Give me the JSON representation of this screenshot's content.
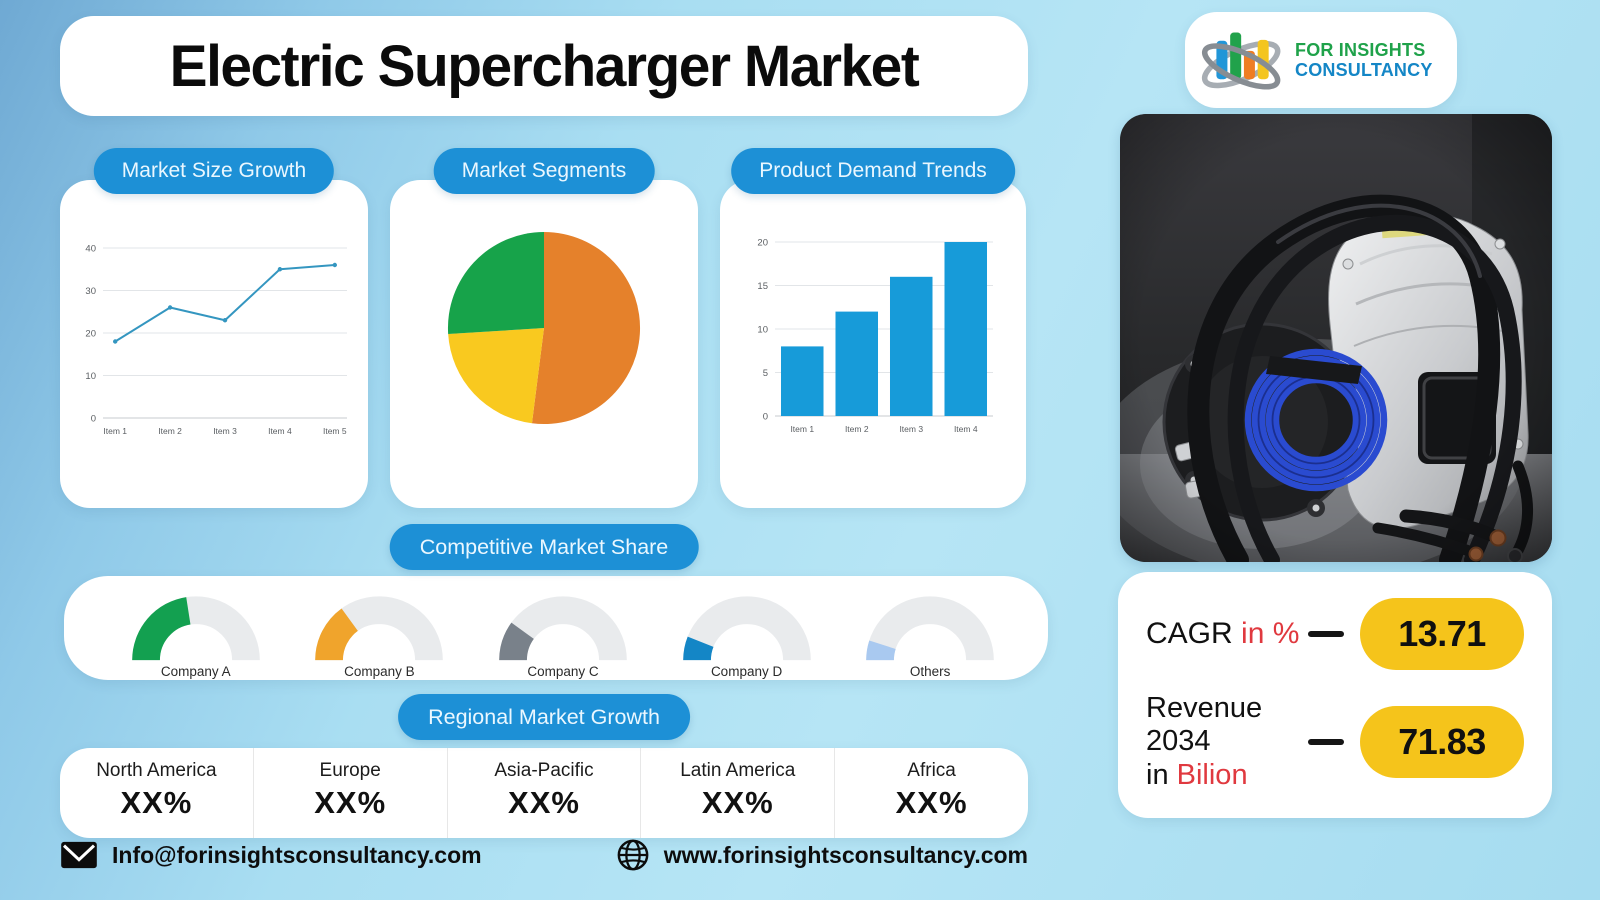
{
  "title": "Electric Supercharger Market",
  "logo": {
    "line1": "FOR INSIGHTS",
    "line2": "CONSULTANCY"
  },
  "section_labels": {
    "market_size": "Market Size Growth",
    "segments": "Market Segments",
    "demand": "Product Demand Trends",
    "competitive": "Competitive Market Share",
    "regional": "Regional Market Growth"
  },
  "chart_data": [
    {
      "id": "market_size_growth",
      "type": "line",
      "title": "Market Size Growth",
      "categories": [
        "Item 1",
        "Item 2",
        "Item 3",
        "Item 4",
        "Item 5"
      ],
      "values": [
        18,
        26,
        23,
        35,
        36
      ],
      "y_ticks": [
        0,
        10,
        20,
        30,
        40
      ],
      "ylim": [
        0,
        40
      ],
      "line_color": "#3496c0",
      "grid": true,
      "legend": "none"
    },
    {
      "id": "market_segments",
      "type": "pie",
      "title": "Market Segments",
      "values": [
        52,
        22,
        26
      ],
      "colors": [
        "#e5812b",
        "#f9c91f",
        "#17a34a"
      ],
      "start": "top",
      "direction": "clockwise",
      "legend": "none"
    },
    {
      "id": "product_demand_trends",
      "type": "bar",
      "title": "Product Demand Trends",
      "categories": [
        "Item 1",
        "Item 2",
        "Item 3",
        "Item 4"
      ],
      "values": [
        8,
        12,
        16,
        20
      ],
      "y_ticks": [
        0,
        5,
        10,
        15,
        20
      ],
      "ylim": [
        0,
        20
      ],
      "bar_color": "#179bd9",
      "grid": true,
      "legend": "none"
    },
    {
      "id": "competitive_market_share",
      "type": "gauge",
      "title": "Competitive Market Share",
      "track_color": "#e9ebed",
      "gauges": [
        {
          "name": "Company A",
          "value": 45,
          "color": "#13a050"
        },
        {
          "name": "Company B",
          "value": 30,
          "color": "#f0a42c"
        },
        {
          "name": "Company C",
          "value": 20,
          "color": "#79818a"
        },
        {
          "name": "Company D",
          "value": 12,
          "color": "#1486c6"
        },
        {
          "name": "Others",
          "value": 10,
          "color": "#a9c9f0"
        }
      ]
    }
  ],
  "regional": {
    "regions": [
      {
        "name": "North America",
        "value": "XX%"
      },
      {
        "name": "Europe",
        "value": "XX%"
      },
      {
        "name": "Asia-Pacific",
        "value": "XX%"
      },
      {
        "name": "Latin America",
        "value": "XX%"
      },
      {
        "name": "Africa",
        "value": "XX%"
      }
    ]
  },
  "stats": {
    "cagr_label": "CAGR",
    "cagr_unit": "in %",
    "cagr_value": "13.71",
    "revenue_label": "Revenue 2034",
    "revenue_in": "in",
    "revenue_unit": "Bilion",
    "revenue_value": "71.83"
  },
  "footer": {
    "email": "Info@forinsightsconsultancy.com",
    "website": "www.forinsightsconsultancy.com"
  },
  "colors": {
    "accent_blue": "#1d90d6",
    "stat_yellow": "#f5c41b",
    "stat_red": "#e0393f",
    "logo_green": "#1fa24a",
    "logo_blue": "#1486c6"
  }
}
